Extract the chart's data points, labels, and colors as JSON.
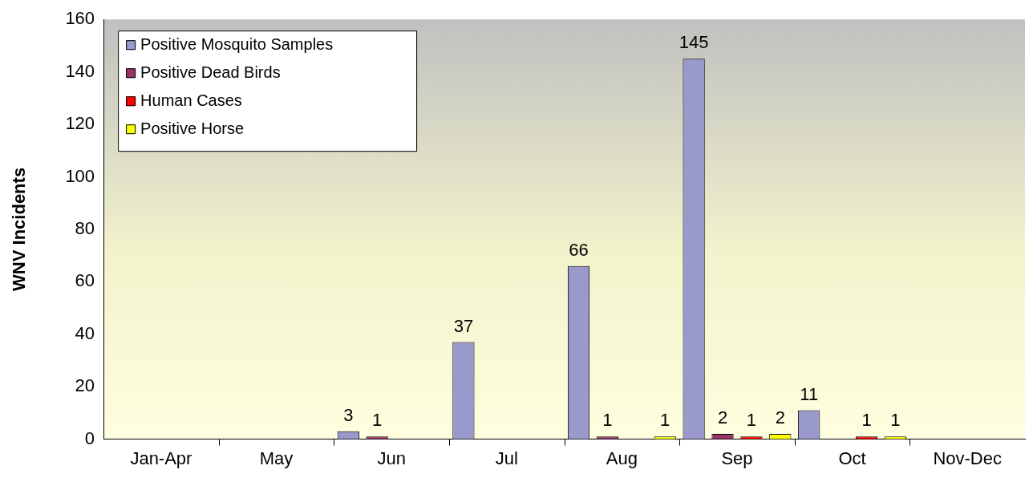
{
  "chart_data": {
    "type": "bar",
    "ylabel": "WNV Incidents",
    "categories": [
      "Jan-Apr",
      "May",
      "Jun",
      "Jul",
      "Aug",
      "Sep",
      "Oct",
      "Nov-Dec"
    ],
    "series": [
      {
        "name": "Positive Mosquito Samples",
        "color": "#9999cc",
        "values": [
          null,
          null,
          3,
          37,
          66,
          145,
          11,
          null
        ]
      },
      {
        "name": "Positive Dead Birds",
        "color": "#993366",
        "values": [
          null,
          null,
          1,
          null,
          1,
          2,
          null,
          null
        ]
      },
      {
        "name": "Human Cases",
        "color": "#ff0000",
        "values": [
          null,
          null,
          null,
          null,
          null,
          1,
          1,
          null
        ]
      },
      {
        "name": "Positive Horse",
        "color": "#ffff00",
        "values": [
          null,
          null,
          null,
          null,
          1,
          2,
          1,
          null
        ]
      }
    ],
    "ylim": [
      0,
      160
    ],
    "yticks": [
      0,
      20,
      40,
      60,
      80,
      100,
      120,
      140,
      160
    ],
    "grid": false,
    "legend": "top left",
    "data_labels": true
  }
}
